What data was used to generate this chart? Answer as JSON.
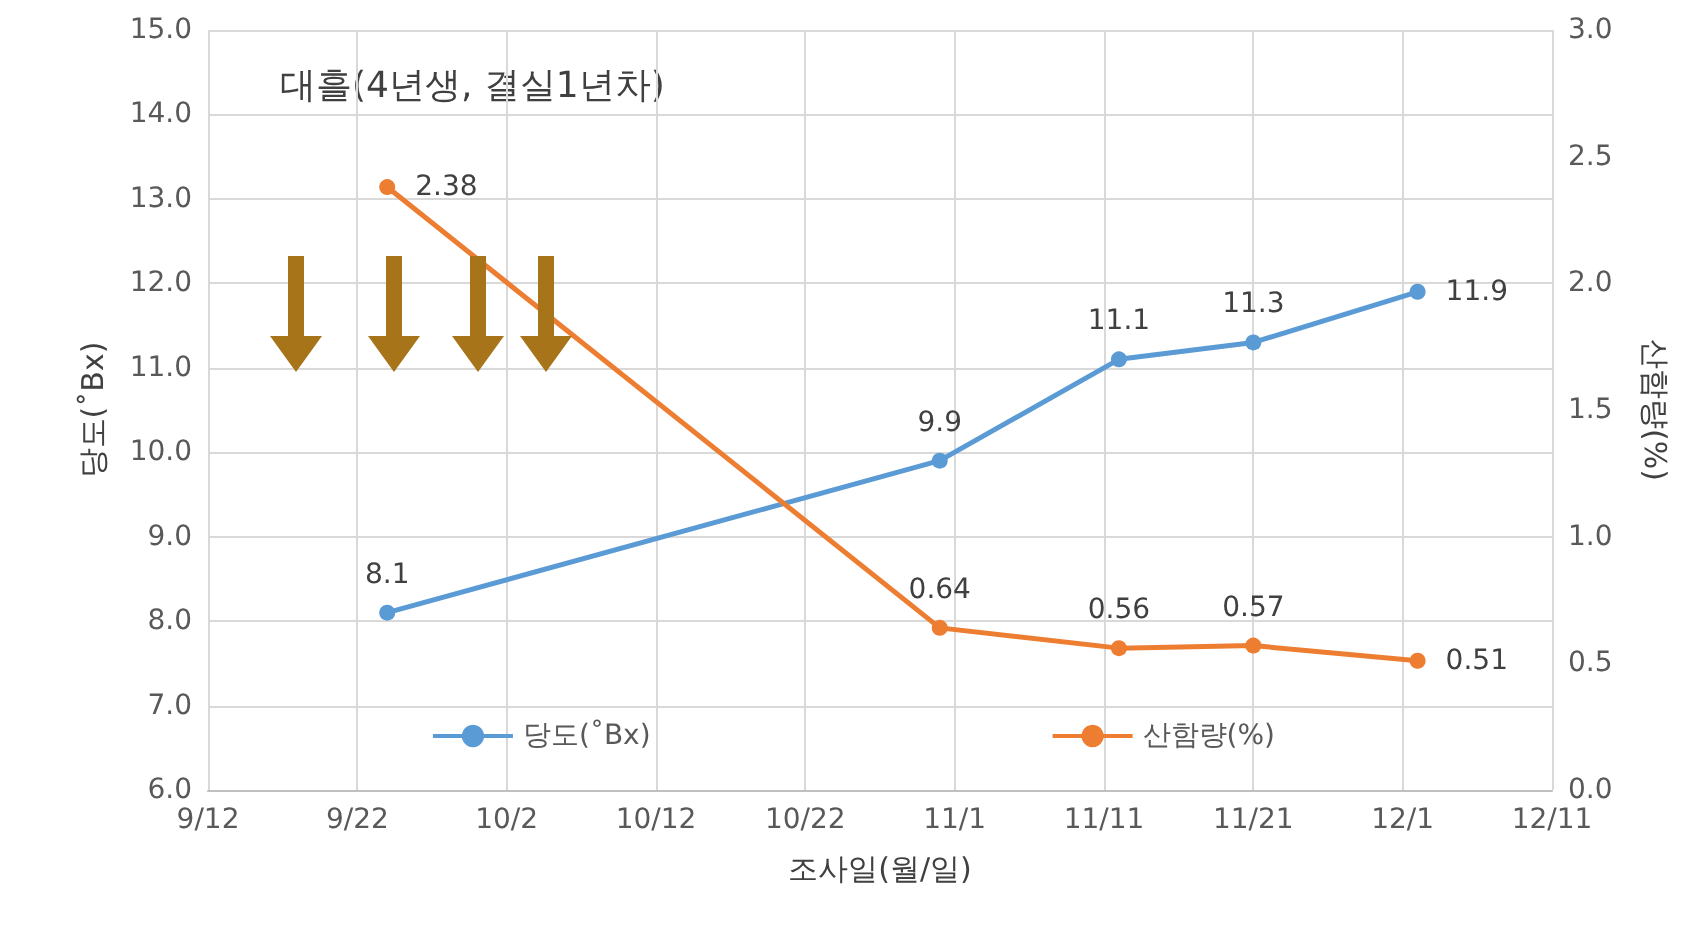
{
  "chart_data": {
    "type": "line",
    "xlabel": "조사일(월/일)",
    "ylabel": "당도(˚Bx)",
    "y2label": "산함량(%)",
    "annotations": [
      "대흘(4년생, 결실1년차)"
    ],
    "series": [
      {
        "name": "당도(˚Bx)",
        "color": "#5b9bd5",
        "x": [
          "--09-24",
          "--10-31",
          "--11-12",
          "--11-21",
          "--12-02"
        ],
        "values": [
          8.1,
          9.9,
          11.1,
          11.3,
          11.9
        ]
      },
      {
        "name": "산함량(%)",
        "color": "#ed7d31",
        "axis": "y2",
        "x": [
          "--09-24",
          "--10-31",
          "--11-12",
          "--11-21",
          "--12-02"
        ],
        "values": [
          2.38,
          0.64,
          0.56,
          0.57,
          0.51
        ]
      }
    ],
    "xlim": [
      "--09-12",
      "--12-11"
    ],
    "xticks": [
      {
        "value": "--09-12",
        "label": "9/12"
      },
      {
        "value": "--09-22",
        "label": "9/22"
      },
      {
        "value": "--10-02",
        "label": "10/2"
      },
      {
        "value": "--10-12",
        "label": "10/12"
      },
      {
        "value": "--10-22",
        "label": "10/22"
      },
      {
        "value": "--11-01",
        "label": "11/1"
      },
      {
        "value": "--11-11",
        "label": "11/11"
      },
      {
        "value": "--11-21",
        "label": "11/21"
      },
      {
        "value": "--12-01",
        "label": "12/1"
      },
      {
        "value": "--12-11",
        "label": "12/11"
      }
    ],
    "ylim": [
      6,
      15
    ],
    "yticks": [
      {
        "value": 6,
        "label": "6.0"
      },
      {
        "value": 7,
        "label": "7.0"
      },
      {
        "value": 8,
        "label": "8.0"
      },
      {
        "value": 9,
        "label": "9.0"
      },
      {
        "value": 10,
        "label": "10.0"
      },
      {
        "value": 11,
        "label": "11.0"
      },
      {
        "value": 12,
        "label": "12.0"
      },
      {
        "value": 13,
        "label": "13.0"
      },
      {
        "value": 14,
        "label": "14.0"
      },
      {
        "value": 15,
        "label": "15.0"
      }
    ],
    "y2lim": [
      0,
      3
    ],
    "y2ticks": [
      {
        "value": 0,
        "label": "0.0"
      },
      {
        "value": 0.5,
        "label": "0.5"
      },
      {
        "value": 1,
        "label": "1.0"
      },
      {
        "value": 1.5,
        "label": "1.5"
      },
      {
        "value": 2,
        "label": "2.0"
      },
      {
        "value": 2.5,
        "label": "2.5"
      },
      {
        "value": 3,
        "label": "3.0"
      }
    ],
    "grid": true,
    "legend": "bottom",
    "marker": "circle",
    "line_style": "solid",
    "data_labels": true
  }
}
